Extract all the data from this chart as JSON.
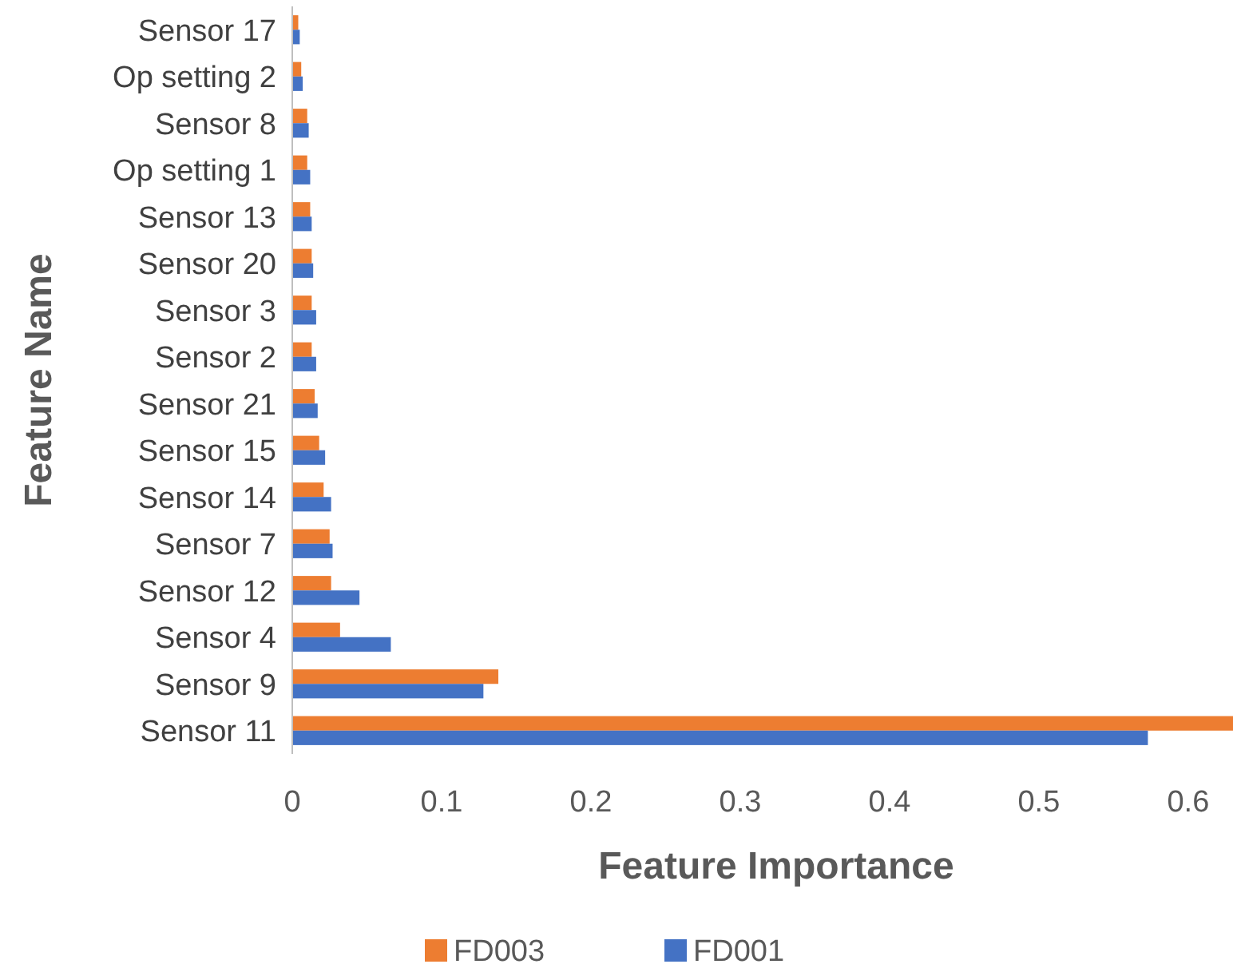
{
  "chart_data": {
    "type": "bar",
    "orientation": "horizontal",
    "xlabel": "Feature Importance",
    "ylabel": "Feature Name",
    "categories": [
      "Sensor 17",
      "Op setting 2",
      "Sensor 8",
      "Op setting 1",
      "Sensor 13",
      "Sensor 20",
      "Sensor 3",
      "Sensor 2",
      "Sensor 21",
      "Sensor 15",
      "Sensor 14",
      "Sensor 7",
      "Sensor 12",
      "Sensor 4",
      "Sensor 9",
      "Sensor 11"
    ],
    "series": [
      {
        "name": "FD003",
        "color": "#ed7d31",
        "values": [
          0.004,
          0.006,
          0.01,
          0.01,
          0.012,
          0.013,
          0.013,
          0.013,
          0.015,
          0.018,
          0.021,
          0.025,
          0.026,
          0.032,
          0.138,
          0.63
        ]
      },
      {
        "name": "FD001",
        "color": "#4472c4",
        "values": [
          0.005,
          0.007,
          0.011,
          0.012,
          0.013,
          0.014,
          0.016,
          0.016,
          0.017,
          0.022,
          0.026,
          0.027,
          0.045,
          0.066,
          0.128,
          0.573
        ]
      }
    ],
    "xlim": [
      0,
      0.63
    ],
    "xticks": [
      0,
      0.1,
      0.2,
      0.3,
      0.4,
      0.5,
      0.6
    ],
    "grid": false,
    "legend": "bottom"
  }
}
